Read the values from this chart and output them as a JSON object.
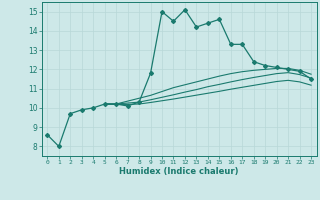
{
  "xlabel": "Humidex (Indice chaleur)",
  "xlim": [
    -0.5,
    23.5
  ],
  "ylim": [
    7.5,
    15.5
  ],
  "xticks": [
    0,
    1,
    2,
    3,
    4,
    5,
    6,
    7,
    8,
    9,
    10,
    11,
    12,
    13,
    14,
    15,
    16,
    17,
    18,
    19,
    20,
    21,
    22,
    23
  ],
  "yticks": [
    8,
    9,
    10,
    11,
    12,
    13,
    14,
    15
  ],
  "bg_color": "#cde8e8",
  "line_color": "#1a7a6e",
  "grid_color": "#b8d8d8",
  "line1_x": [
    0,
    1,
    2,
    3,
    4,
    5,
    6,
    7,
    8,
    9,
    10,
    11,
    12,
    13,
    14,
    15,
    16,
    17,
    18,
    19,
    20,
    21,
    22,
    23
  ],
  "line1_y": [
    8.6,
    8.0,
    9.7,
    9.9,
    10.0,
    10.2,
    10.2,
    10.1,
    10.3,
    11.8,
    15.0,
    14.5,
    15.1,
    14.2,
    14.4,
    14.6,
    13.3,
    13.3,
    12.4,
    12.2,
    12.1,
    12.0,
    11.9,
    11.5
  ],
  "line2_x": [
    5,
    6,
    7,
    8,
    9,
    10,
    11,
    12,
    13,
    14,
    15,
    16,
    17,
    18,
    19,
    20,
    21,
    22,
    23
  ],
  "line2_y": [
    10.2,
    10.2,
    10.35,
    10.5,
    10.65,
    10.85,
    11.05,
    11.2,
    11.35,
    11.5,
    11.65,
    11.78,
    11.88,
    11.95,
    12.0,
    12.05,
    12.05,
    11.95,
    11.75
  ],
  "line3_x": [
    5,
    6,
    7,
    8,
    9,
    10,
    11,
    12,
    13,
    14,
    15,
    16,
    17,
    18,
    19,
    20,
    21,
    22,
    23
  ],
  "line3_y": [
    10.2,
    10.2,
    10.25,
    10.3,
    10.42,
    10.55,
    10.68,
    10.82,
    10.95,
    11.1,
    11.22,
    11.35,
    11.47,
    11.58,
    11.68,
    11.78,
    11.83,
    11.73,
    11.55
  ],
  "line4_x": [
    5,
    6,
    7,
    8,
    9,
    10,
    11,
    12,
    13,
    14,
    15,
    16,
    17,
    18,
    19,
    20,
    21,
    22,
    23
  ],
  "line4_y": [
    10.2,
    10.18,
    10.18,
    10.2,
    10.28,
    10.37,
    10.46,
    10.56,
    10.66,
    10.76,
    10.86,
    10.97,
    11.07,
    11.17,
    11.27,
    11.37,
    11.43,
    11.35,
    11.18
  ]
}
